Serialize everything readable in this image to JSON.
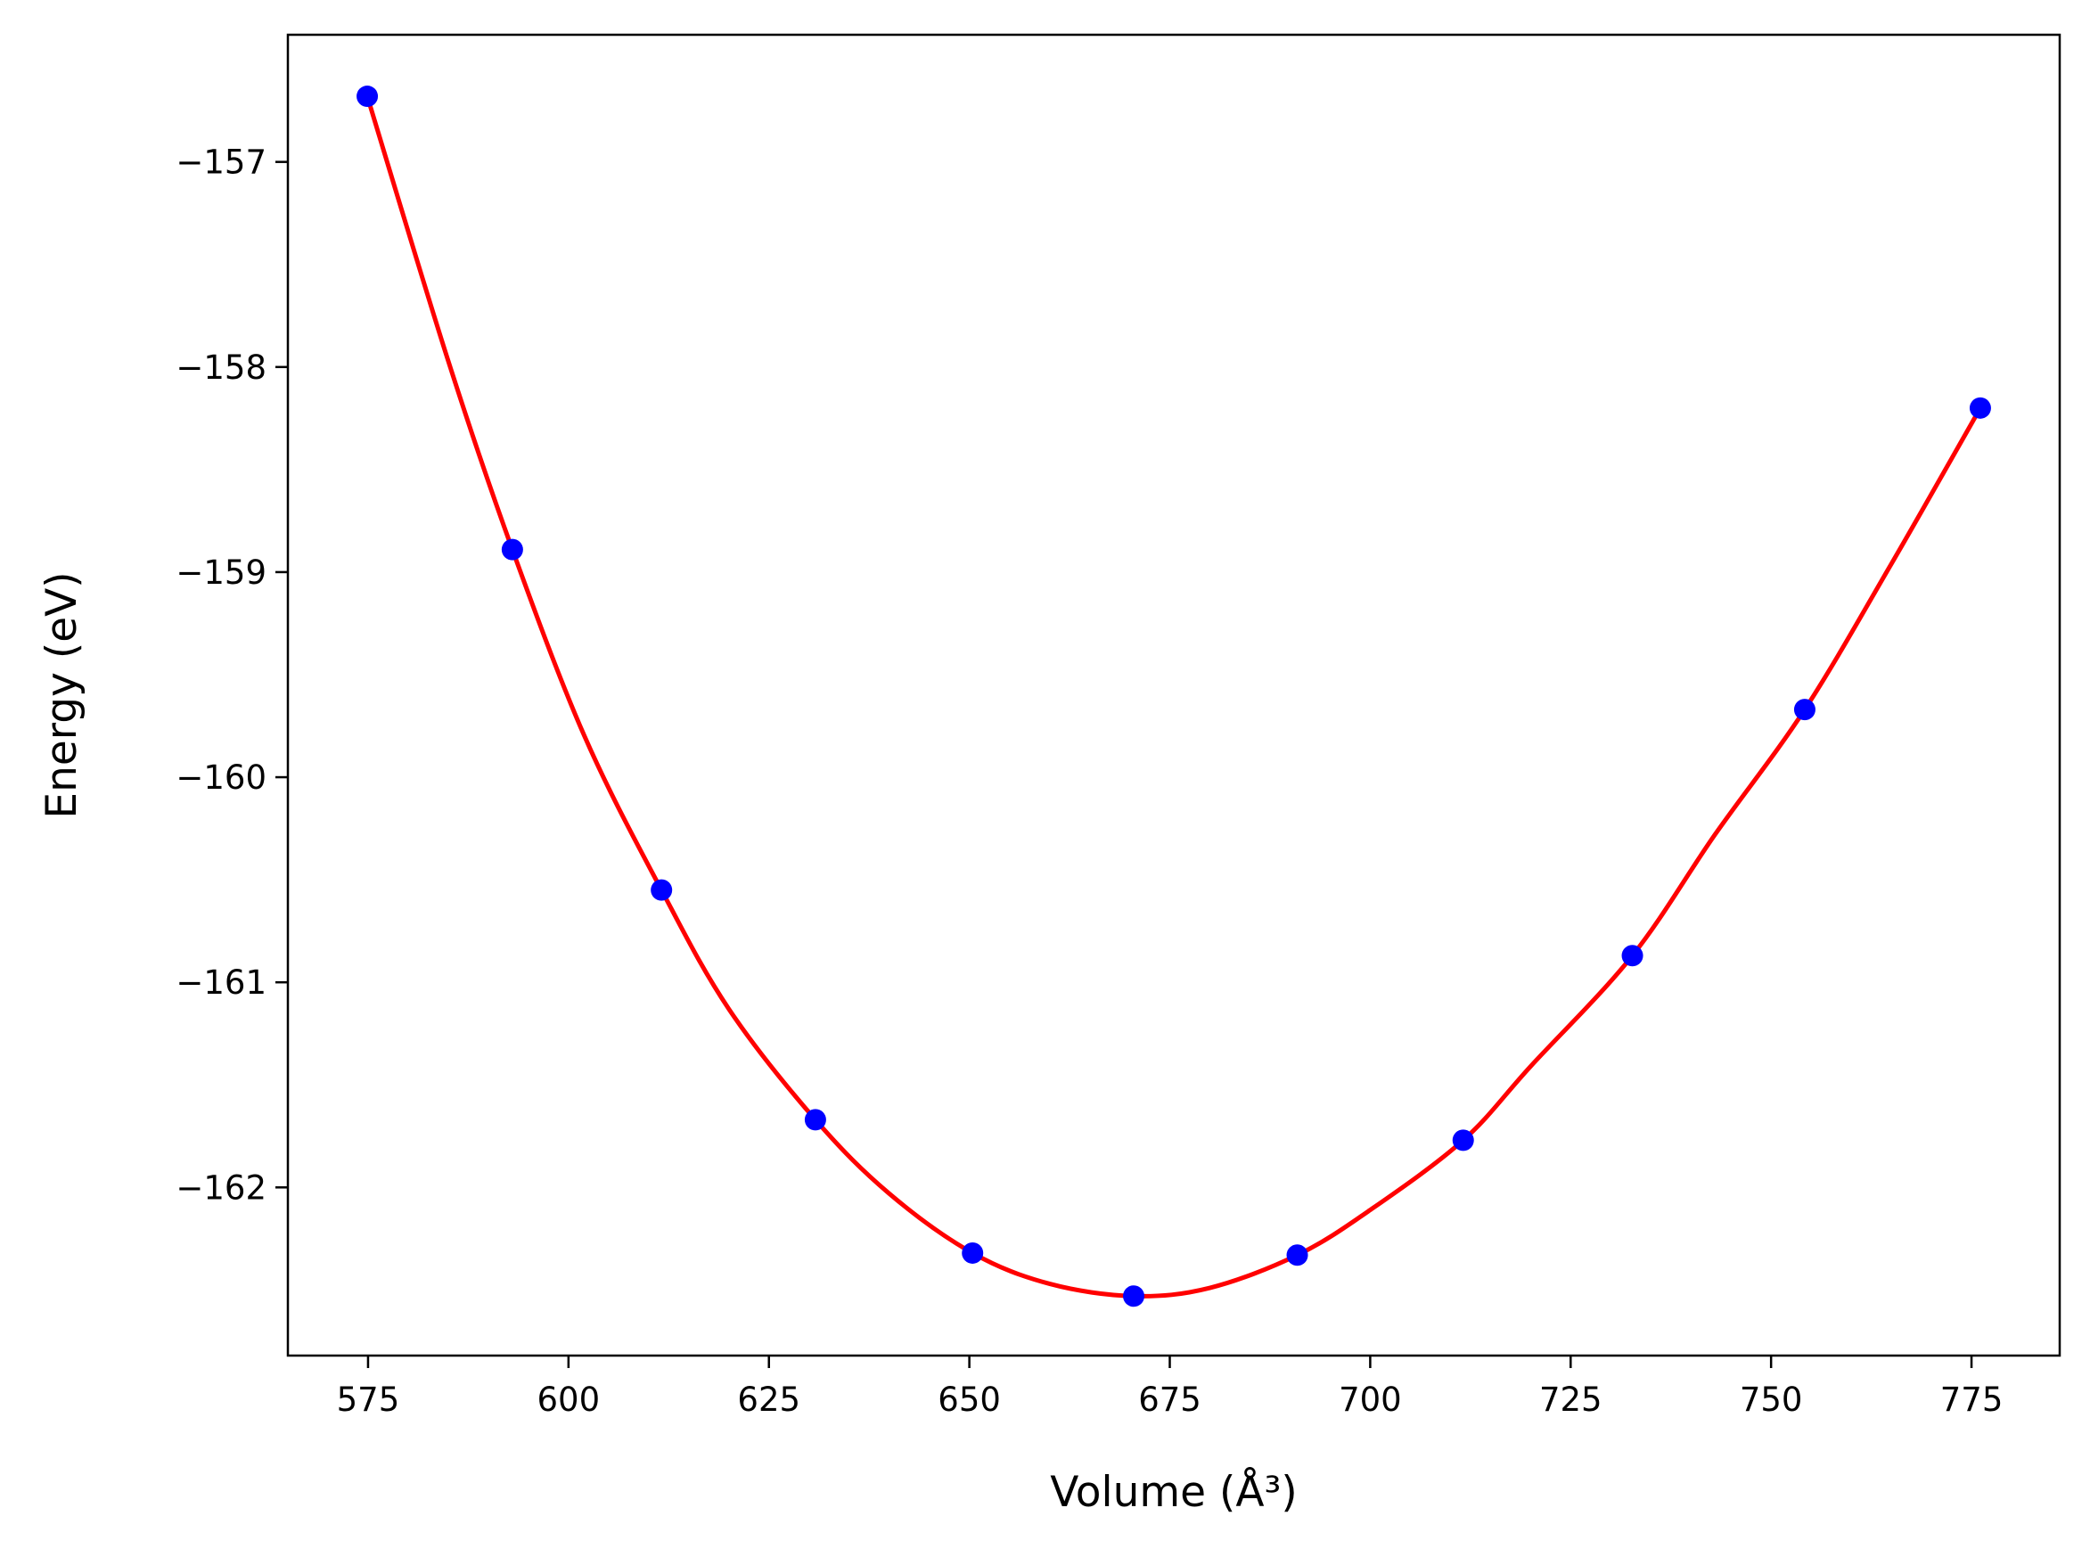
{
  "chart_data": {
    "type": "scatter",
    "xlabel": "Volume (Å³)",
    "ylabel": "Energy (eV)",
    "xlim": [
      565,
      786
    ],
    "ylim": [
      -162.82,
      -156.38
    ],
    "xticks": [
      575,
      600,
      625,
      650,
      675,
      700,
      725,
      750,
      775
    ],
    "xtick_labels": [
      "575",
      "600",
      "625",
      "650",
      "675",
      "700",
      "725",
      "750",
      "775"
    ],
    "yticks": [
      -162,
      -161,
      -160,
      -159,
      -158,
      -157
    ],
    "ytick_labels": [
      "−162",
      "−161",
      "−160",
      "−159",
      "−158",
      "−157"
    ],
    "grid": false,
    "series": [
      {
        "kind": "points",
        "color": "#0000ff",
        "x": [
          574.9,
          593.0,
          611.6,
          630.8,
          650.4,
          670.5,
          690.9,
          711.6,
          732.7,
          754.2,
          776.1
        ],
        "y": [
          -156.68,
          -158.89,
          -160.55,
          -161.67,
          -162.32,
          -162.53,
          -162.33,
          -161.77,
          -160.87,
          -159.67,
          -158.2
        ]
      },
      {
        "kind": "fit-curve",
        "color": "#ff0000",
        "x": [
          574.9,
          585,
          593.0,
          602,
          611.6,
          620,
          630.8,
          640,
          650.4,
          660,
          670.5,
          680,
          690.9,
          700,
          711.6,
          720,
          732.7,
          743,
          754.2,
          765,
          776.1
        ],
        "y": [
          -156.68,
          -157.97,
          -158.89,
          -159.8,
          -160.55,
          -161.13,
          -161.67,
          -162.03,
          -162.32,
          -162.47,
          -162.53,
          -162.49,
          -162.33,
          -162.11,
          -161.77,
          -161.41,
          -160.87,
          -160.28,
          -159.67,
          -158.96,
          -158.2
        ]
      }
    ]
  }
}
